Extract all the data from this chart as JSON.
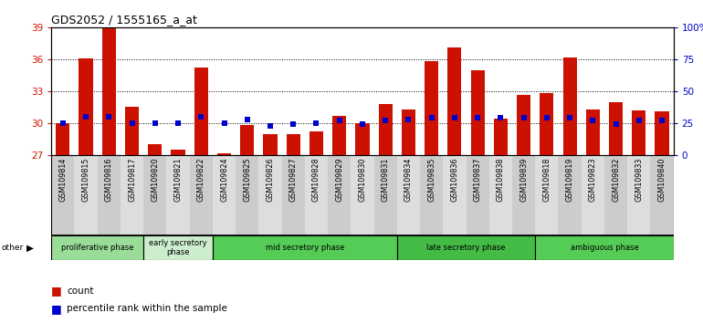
{
  "title": "GDS2052 / 1555165_a_at",
  "samples": [
    "GSM109814",
    "GSM109815",
    "GSM109816",
    "GSM109817",
    "GSM109820",
    "GSM109821",
    "GSM109822",
    "GSM109824",
    "GSM109825",
    "GSM109826",
    "GSM109827",
    "GSM109828",
    "GSM109829",
    "GSM109830",
    "GSM109831",
    "GSM109834",
    "GSM109835",
    "GSM109836",
    "GSM109837",
    "GSM109838",
    "GSM109839",
    "GSM109818",
    "GSM109819",
    "GSM109823",
    "GSM109832",
    "GSM109833",
    "GSM109840"
  ],
  "count": [
    30.0,
    36.1,
    39.0,
    31.5,
    28.0,
    27.5,
    35.2,
    27.2,
    29.8,
    29.0,
    29.0,
    29.2,
    30.7,
    30.0,
    31.8,
    31.3,
    35.8,
    37.1,
    35.0,
    30.4,
    32.7,
    32.8,
    36.2,
    31.3,
    32.0,
    31.2,
    31.1
  ],
  "percentile": [
    25,
    30,
    30,
    25,
    25,
    25,
    30,
    25,
    28,
    23,
    24,
    25,
    27,
    24,
    27,
    28,
    29,
    29,
    29,
    29,
    29,
    29,
    29,
    27,
    24,
    27,
    27
  ],
  "phases": [
    {
      "label": "proliferative phase",
      "start": 0,
      "end": 4,
      "color": "#99dd99"
    },
    {
      "label": "early secretory\nphase",
      "start": 4,
      "end": 7,
      "color": "#cceecc"
    },
    {
      "label": "mid secretory phase",
      "start": 7,
      "end": 15,
      "color": "#55cc55"
    },
    {
      "label": "late secretory phase",
      "start": 15,
      "end": 21,
      "color": "#44bb44"
    },
    {
      "label": "ambiguous phase",
      "start": 21,
      "end": 27,
      "color": "#55cc55"
    }
  ],
  "ylim_left": [
    27,
    39
  ],
  "ylim_right": [
    0,
    100
  ],
  "yticks_left": [
    27,
    30,
    33,
    36,
    39
  ],
  "yticks_right": [
    0,
    25,
    50,
    75,
    100
  ],
  "bar_color": "#cc1100",
  "dot_color": "#0000cc",
  "bar_bottom": 27,
  "col_bg_even": "#cccccc",
  "col_bg_odd": "#dddddd"
}
